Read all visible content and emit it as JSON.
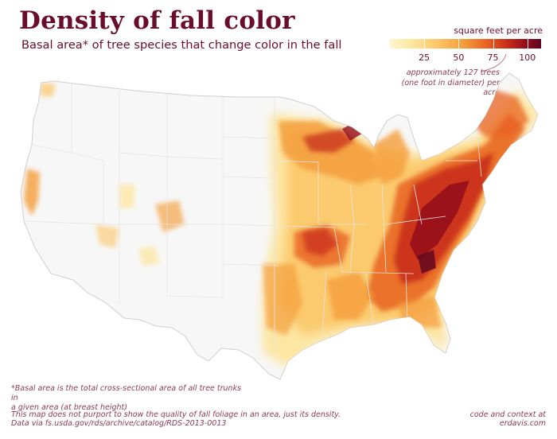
{
  "title": "Density of fall color",
  "subtitle": "Basal area* of tree species that change color in the fall",
  "legend": {
    "title": "square feet per acre",
    "ticks": [
      {
        "value": 25,
        "label": "25"
      },
      {
        "value": 50,
        "label": "50"
      },
      {
        "value": 75,
        "label": "75"
      },
      {
        "value": 100,
        "label": "100"
      }
    ],
    "range": [
      0,
      110
    ],
    "colors": [
      "#fff6cf",
      "#fde49a",
      "#fcc565",
      "#f59e3c",
      "#e86322",
      "#c72b17",
      "#930c1b",
      "#5c0520"
    ],
    "note_line1": "approximately 127 trees",
    "note_line2": "(one foot in diameter) per acre"
  },
  "map": {
    "region": "contiguous United States",
    "background_fill": "#f7f7f7",
    "state_border_color": "#e4e4e4"
  },
  "footnote_line1": "*Basal area is the total cross-sectional area of all tree trunks in",
  "footnote_line2": "a given area (at breast height)",
  "disclaimer_line1": "This map does not purport to show the quality of fall foliage in an area, just its density.",
  "disclaimer_line2": "Data via fs.usda.gov/rds/archive/catalog/RDS-2013-0013",
  "credit_line1": "code and context at",
  "credit_line2": "erdavis.com"
}
